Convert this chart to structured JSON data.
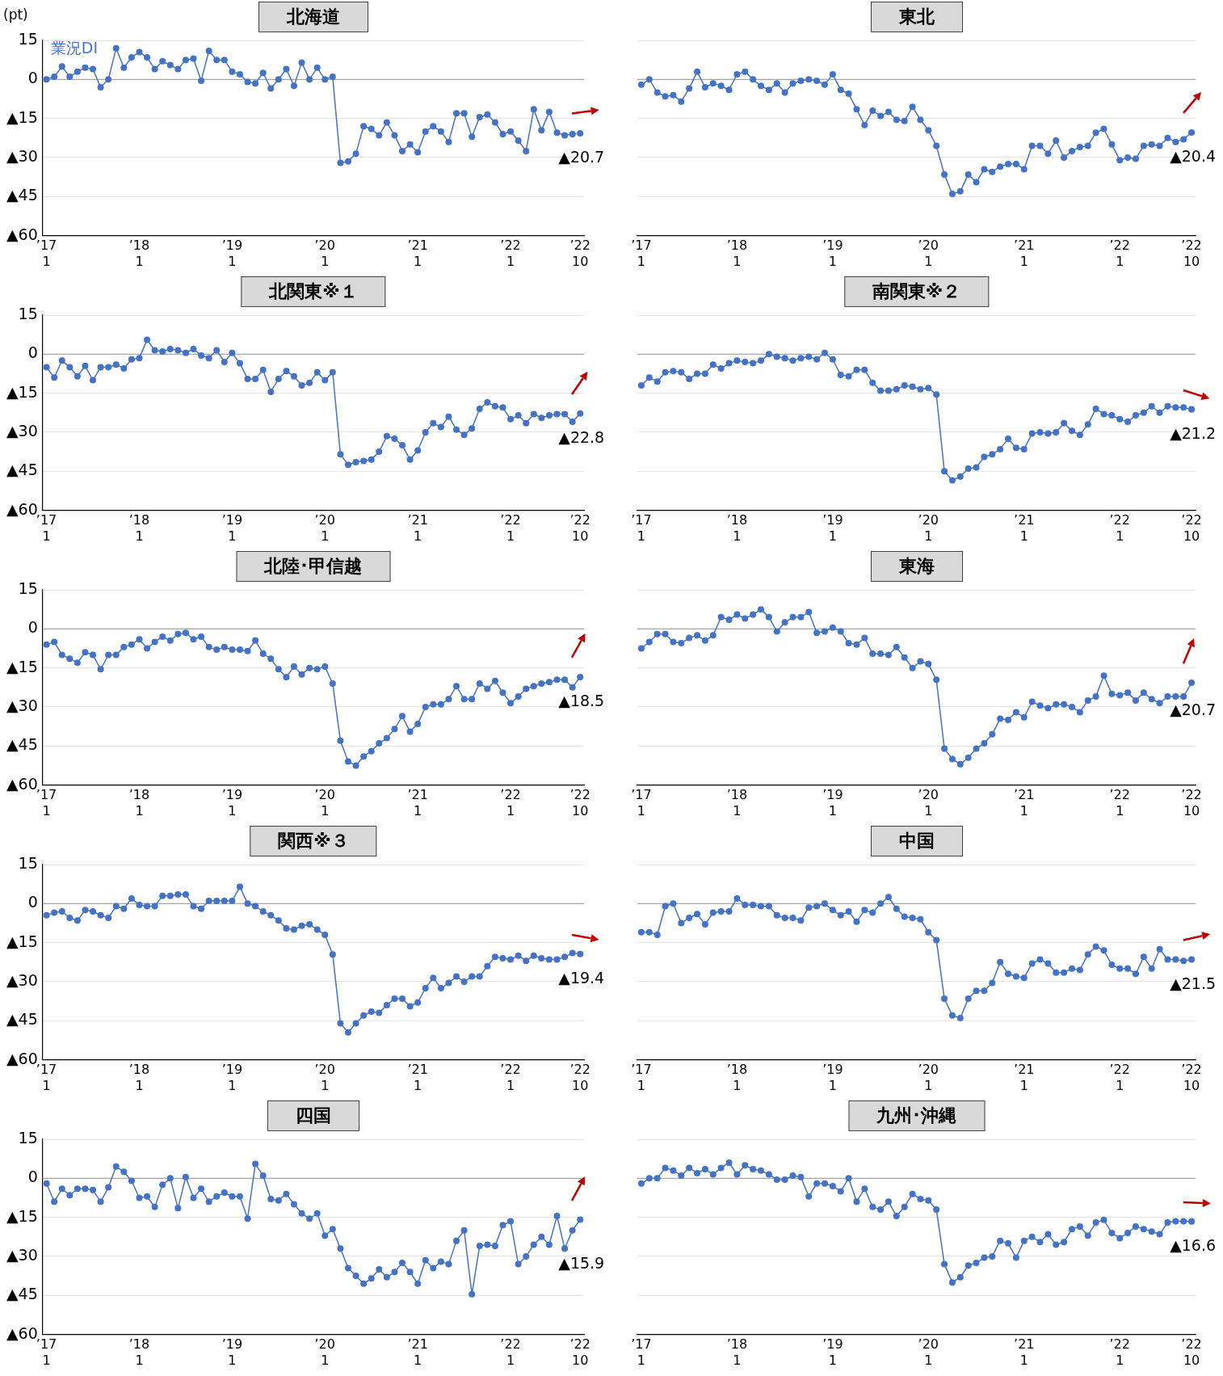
{
  "chart_data": [
    {
      "type": "line",
      "title": "北海道",
      "ylabel": "(pt)",
      "legend": "top left",
      "marker": "circle",
      "grid": "y",
      "categories": [
        "’17\n1",
        null,
        null,
        null,
        null,
        null,
        null,
        null,
        null,
        null,
        null,
        null,
        "’18\n1",
        null,
        null,
        null,
        null,
        null,
        null,
        null,
        null,
        null,
        null,
        null,
        "’19\n1",
        null,
        null,
        null,
        null,
        null,
        null,
        null,
        null,
        null,
        null,
        null,
        "’20\n1",
        null,
        null,
        null,
        null,
        null,
        null,
        null,
        null,
        null,
        null,
        null,
        "’21\n1",
        null,
        null,
        null,
        null,
        null,
        null,
        null,
        null,
        null,
        null,
        null,
        "’22\n1",
        null,
        null,
        null,
        null,
        null,
        null,
        null,
        null,
        "’22\n10"
      ],
      "series": [
        {
          "name": "業況DI",
          "color": "#4472c4",
          "values": [
            0,
            1,
            5,
            1,
            3,
            4.5,
            4,
            -3,
            0,
            12,
            4.5,
            8.5,
            10.5,
            8.5,
            4,
            7,
            5.5,
            4,
            7.5,
            8,
            -0.5,
            11,
            7.5,
            7.5,
            3,
            2,
            -1,
            -1.5,
            2.5,
            -3.5,
            0,
            4,
            -2.5,
            6.5,
            0,
            4.5,
            0,
            1,
            -32,
            -31.5,
            -28.5,
            -18,
            -19,
            -21.5,
            -16.5,
            -21.5,
            -27.5,
            -25,
            -28,
            -20,
            -18,
            -20,
            -24,
            -13,
            -13,
            -22,
            -14.5,
            -13.5,
            -16.5,
            -21,
            -20,
            -23.5,
            -27.5,
            -11.5,
            -19.5,
            -12.5,
            -20.5,
            -21.5,
            -21,
            -20.7
          ]
        }
      ],
      "ylim": [
        -60,
        15
      ],
      "yticks": [
        {
          "value": -60,
          "label": "▲60"
        },
        {
          "value": -45,
          "label": "▲45"
        },
        {
          "value": -30,
          "label": "▲30"
        },
        {
          "value": -15,
          "label": "▲15"
        },
        {
          "value": 0,
          "label": "0"
        },
        {
          "value": 15,
          "label": "15"
        }
      ],
      "ref_lines": [
        {
          "axis": "y",
          "value": 0,
          "color": "#a6a6a6"
        }
      ],
      "annotations": [
        {
          "text": "▲20.7",
          "x": "’22\n10",
          "y": -20.7
        }
      ]
    },
    {
      "type": "line",
      "title": "東北",
      "marker": "circle",
      "grid": "y",
      "tick_labels": "x",
      "categories": [
        "’17\n1",
        null,
        null,
        null,
        null,
        null,
        null,
        null,
        null,
        null,
        null,
        null,
        "’18\n1",
        null,
        null,
        null,
        null,
        null,
        null,
        null,
        null,
        null,
        null,
        null,
        "’19\n1",
        null,
        null,
        null,
        null,
        null,
        null,
        null,
        null,
        null,
        null,
        null,
        "’20\n1",
        null,
        null,
        null,
        null,
        null,
        null,
        null,
        null,
        null,
        null,
        null,
        "’21\n1",
        null,
        null,
        null,
        null,
        null,
        null,
        null,
        null,
        null,
        null,
        null,
        "’22\n1",
        null,
        null,
        null,
        null,
        null,
        null,
        null,
        null,
        "’22\n10"
      ],
      "series": [
        {
          "color": "#4472c4",
          "values": [
            -2,
            0,
            -5,
            -6.5,
            -6,
            -8.5,
            -3.5,
            3,
            -3,
            -1.5,
            -2.5,
            -4,
            2,
            3,
            0,
            -2.5,
            -4,
            -1.5,
            -5,
            -1.5,
            -0.5,
            0,
            -0.5,
            -2,
            2,
            -4,
            -5.5,
            -11.5,
            -17.5,
            -12,
            -14,
            -12.5,
            -15.5,
            -16,
            -10.5,
            -15.5,
            -19.5,
            -25.5,
            -36.5,
            -44,
            -43,
            -36.5,
            -39.5,
            -34.5,
            -35.5,
            -33.5,
            -32.5,
            -32.5,
            -34.5,
            -25.5,
            -25.5,
            -28.5,
            -23.5,
            -30,
            -27.5,
            -26,
            -25.5,
            -20.5,
            -19,
            -25,
            -31,
            -30,
            -30.5,
            -25.5,
            -25,
            -25.5,
            -22.5,
            -24,
            -23,
            -20.4
          ]
        }
      ],
      "ylim": [
        -60,
        15
      ],
      "yticks": [
        {
          "value": -60,
          "label": "▲60"
        },
        {
          "value": -45,
          "label": "▲45"
        },
        {
          "value": -30,
          "label": "▲30"
        },
        {
          "value": -15,
          "label": "▲15"
        },
        {
          "value": 0,
          "label": "0"
        },
        {
          "value": 15,
          "label": "15"
        }
      ],
      "ref_lines": [
        {
          "axis": "y",
          "value": 0,
          "color": "#a6a6a6"
        }
      ],
      "annotations": [
        {
          "text": "▲20.4",
          "x": "’22\n10",
          "y": -20.4
        }
      ]
    },
    {
      "type": "line",
      "title": "北関東※１",
      "marker": "circle",
      "grid": "y",
      "categories": [
        "’17\n1",
        null,
        null,
        null,
        null,
        null,
        null,
        null,
        null,
        null,
        null,
        null,
        "’18\n1",
        null,
        null,
        null,
        null,
        null,
        null,
        null,
        null,
        null,
        null,
        null,
        "’19\n1",
        null,
        null,
        null,
        null,
        null,
        null,
        null,
        null,
        null,
        null,
        null,
        "’20\n1",
        null,
        null,
        null,
        null,
        null,
        null,
        null,
        null,
        null,
        null,
        null,
        "’21\n1",
        null,
        null,
        null,
        null,
        null,
        null,
        null,
        null,
        null,
        null,
        null,
        "’22\n1",
        null,
        null,
        null,
        null,
        null,
        null,
        null,
        null,
        "’22\n10"
      ],
      "series": [
        {
          "color": "#4472c4",
          "values": [
            -5,
            -9,
            -2.5,
            -5,
            -8.5,
            -4.5,
            -10,
            -5,
            -5,
            -4,
            -5.5,
            -2,
            -1.5,
            5.5,
            1.5,
            1,
            2,
            1.5,
            0.5,
            2,
            -0.5,
            -1.5,
            1.5,
            -3,
            0.5,
            -3.5,
            -9.5,
            -9.5,
            -6,
            -14.5,
            -9.5,
            -6.5,
            -8.5,
            -12,
            -11,
            -7,
            -10,
            -7,
            -38.5,
            -42.5,
            -41.5,
            -41,
            -40.5,
            -37.5,
            -31.5,
            -32.5,
            -35,
            -40.5,
            -37,
            -30,
            -26.5,
            -28,
            -24,
            -29,
            -31,
            -28.5,
            -21,
            -18.5,
            -20,
            -20.5,
            -25,
            -23.5,
            -26.5,
            -23,
            -24.5,
            -23.5,
            -23,
            -23,
            -26,
            -22.8
          ]
        }
      ],
      "ylim": [
        -60,
        15
      ],
      "yticks": [
        {
          "value": -60,
          "label": "▲60"
        },
        {
          "value": -45,
          "label": "▲45"
        },
        {
          "value": -30,
          "label": "▲30"
        },
        {
          "value": -15,
          "label": "▲15"
        },
        {
          "value": 0,
          "label": "0"
        },
        {
          "value": 15,
          "label": "15"
        }
      ],
      "ref_lines": [
        {
          "axis": "y",
          "value": 0,
          "color": "#a6a6a6"
        }
      ],
      "annotations": [
        {
          "text": "▲22.8",
          "x": "’22\n10",
          "y": -22.8
        }
      ]
    },
    {
      "type": "line",
      "title": "南関東※２",
      "marker": "circle",
      "grid": "y",
      "tick_labels": "x",
      "categories": [
        "’17\n1",
        null,
        null,
        null,
        null,
        null,
        null,
        null,
        null,
        null,
        null,
        null,
        "’18\n1",
        null,
        null,
        null,
        null,
        null,
        null,
        null,
        null,
        null,
        null,
        null,
        "’19\n1",
        null,
        null,
        null,
        null,
        null,
        null,
        null,
        null,
        null,
        null,
        null,
        "’20\n1",
        null,
        null,
        null,
        null,
        null,
        null,
        null,
        null,
        null,
        null,
        null,
        "’21\n1",
        null,
        null,
        null,
        null,
        null,
        null,
        null,
        null,
        null,
        null,
        null,
        "’22\n1",
        null,
        null,
        null,
        null,
        null,
        null,
        null,
        null,
        "’22\n10"
      ],
      "series": [
        {
          "color": "#4472c4",
          "values": [
            -12,
            -9,
            -10.5,
            -7,
            -6.5,
            -7,
            -9.5,
            -7.5,
            -7.5,
            -4,
            -5.5,
            -3.5,
            -2.5,
            -3,
            -3.5,
            -2.5,
            0,
            -1,
            -1.5,
            -2.5,
            -1.5,
            -1,
            -2,
            0.5,
            -2,
            -8,
            -8.5,
            -6,
            -6,
            -11,
            -14,
            -14,
            -13.5,
            -12,
            -12.5,
            -13.5,
            -13,
            -15.5,
            -45,
            -48.5,
            -47,
            -44,
            -43.5,
            -39.5,
            -38.5,
            -36.5,
            -32.5,
            -36,
            -36.5,
            -30.5,
            -30,
            -30.5,
            -30,
            -26.5,
            -29.5,
            -31,
            -27,
            -21,
            -23,
            -23.5,
            -25,
            -26,
            -23.5,
            -22.5,
            -20,
            -22.5,
            -20,
            -20.5,
            -20.5,
            -21.2
          ]
        }
      ],
      "ylim": [
        -60,
        15
      ],
      "yticks": [
        {
          "value": -60,
          "label": "▲60"
        },
        {
          "value": -45,
          "label": "▲45"
        },
        {
          "value": -30,
          "label": "▲30"
        },
        {
          "value": -15,
          "label": "▲15"
        },
        {
          "value": 0,
          "label": "0"
        },
        {
          "value": 15,
          "label": "15"
        }
      ],
      "ref_lines": [
        {
          "axis": "y",
          "value": 0,
          "color": "#a6a6a6"
        }
      ],
      "annotations": [
        {
          "text": "▲21.2",
          "x": "’22\n10",
          "y": -21.2
        }
      ]
    },
    {
      "type": "line",
      "title": "北陸･甲信越",
      "marker": "circle",
      "grid": "y",
      "categories": [
        "’17\n1",
        null,
        null,
        null,
        null,
        null,
        null,
        null,
        null,
        null,
        null,
        null,
        "’18\n1",
        null,
        null,
        null,
        null,
        null,
        null,
        null,
        null,
        null,
        null,
        null,
        "’19\n1",
        null,
        null,
        null,
        null,
        null,
        null,
        null,
        null,
        null,
        null,
        null,
        "’20\n1",
        null,
        null,
        null,
        null,
        null,
        null,
        null,
        null,
        null,
        null,
        null,
        "’21\n1",
        null,
        null,
        null,
        null,
        null,
        null,
        null,
        null,
        null,
        null,
        null,
        "’22\n1",
        null,
        null,
        null,
        null,
        null,
        null,
        null,
        null,
        "’22\n10"
      ],
      "series": [
        {
          "color": "#4472c4",
          "values": [
            -6,
            -5,
            -10,
            -11.5,
            -13,
            -9,
            -10,
            -15.5,
            -10,
            -10,
            -7,
            -6,
            -4,
            -7.5,
            -5,
            -3,
            -4.5,
            -2,
            -1.5,
            -4,
            -3,
            -7,
            -8,
            -7,
            -8,
            -8,
            -8.5,
            -4.5,
            -9.5,
            -11.5,
            -15.5,
            -18.5,
            -14.5,
            -17.5,
            -15,
            -15.5,
            -14.5,
            -21,
            -43,
            -51,
            -52.5,
            -49,
            -47,
            -44,
            -42,
            -38.5,
            -33.5,
            -39.5,
            -36.5,
            -30,
            -29,
            -29,
            -27,
            -22,
            -27,
            -27,
            -21,
            -23,
            -20,
            -24.5,
            -28.5,
            -26,
            -23,
            -22,
            -21,
            -20.5,
            -19.5,
            -19.5,
            -22.5,
            -18.5
          ]
        }
      ],
      "ylim": [
        -60,
        15
      ],
      "yticks": [
        {
          "value": -60,
          "label": "▲60"
        },
        {
          "value": -45,
          "label": "▲45"
        },
        {
          "value": -30,
          "label": "▲30"
        },
        {
          "value": -15,
          "label": "▲15"
        },
        {
          "value": 0,
          "label": "0"
        },
        {
          "value": 15,
          "label": "15"
        }
      ],
      "ref_lines": [
        {
          "axis": "y",
          "value": 0,
          "color": "#a6a6a6"
        }
      ],
      "annotations": [
        {
          "text": "▲18.5",
          "x": "’22\n10",
          "y": -18.5
        }
      ]
    },
    {
      "type": "line",
      "title": "東海",
      "marker": "circle",
      "grid": "y",
      "tick_labels": "x",
      "categories": [
        "’17\n1",
        null,
        null,
        null,
        null,
        null,
        null,
        null,
        null,
        null,
        null,
        null,
        "’18\n1",
        null,
        null,
        null,
        null,
        null,
        null,
        null,
        null,
        null,
        null,
        null,
        "’19\n1",
        null,
        null,
        null,
        null,
        null,
        null,
        null,
        null,
        null,
        null,
        null,
        "’20\n1",
        null,
        null,
        null,
        null,
        null,
        null,
        null,
        null,
        null,
        null,
        null,
        "’21\n1",
        null,
        null,
        null,
        null,
        null,
        null,
        null,
        null,
        null,
        null,
        null,
        "’22\n1",
        null,
        null,
        null,
        null,
        null,
        null,
        null,
        null,
        "’22\n10"
      ],
      "series": [
        {
          "color": "#4472c4",
          "values": [
            -7.5,
            -5,
            -2,
            -2,
            -5,
            -5.5,
            -3.5,
            -2.5,
            -4.5,
            -2.5,
            4.5,
            3.5,
            5.5,
            4,
            5.5,
            7.5,
            4.5,
            -1,
            2.5,
            4.5,
            4.5,
            6.5,
            -1.5,
            -1,
            0.5,
            -1,
            -5.5,
            -6,
            -3.5,
            -9.5,
            -9.5,
            -10,
            -7,
            -11,
            -15,
            -12.5,
            -13.5,
            -19.5,
            -46,
            -50,
            -52,
            -49.5,
            -46,
            -44,
            -40.5,
            -34.5,
            -35,
            -32,
            -34,
            -28,
            -29.5,
            -30.5,
            -29,
            -29,
            -30,
            -32,
            -27.5,
            -26,
            -18,
            -25,
            -25.5,
            -24.5,
            -27.5,
            -24.5,
            -27,
            -28.5,
            -26,
            -26,
            -26,
            -20.7
          ]
        }
      ],
      "ylim": [
        -60,
        15
      ],
      "yticks": [
        {
          "value": -60,
          "label": "▲60"
        },
        {
          "value": -45,
          "label": "▲45"
        },
        {
          "value": -30,
          "label": "▲30"
        },
        {
          "value": -15,
          "label": "▲15"
        },
        {
          "value": 0,
          "label": "0"
        },
        {
          "value": 15,
          "label": "15"
        }
      ],
      "ref_lines": [
        {
          "axis": "y",
          "value": 0,
          "color": "#a6a6a6"
        }
      ],
      "annotations": [
        {
          "text": "▲20.7",
          "x": "’22\n10",
          "y": -20.7
        }
      ]
    },
    {
      "type": "line",
      "title": "関西※３",
      "marker": "circle",
      "grid": "y",
      "categories": [
        "’17\n1",
        null,
        null,
        null,
        null,
        null,
        null,
        null,
        null,
        null,
        null,
        null,
        "’18\n1",
        null,
        null,
        null,
        null,
        null,
        null,
        null,
        null,
        null,
        null,
        null,
        "’19\n1",
        null,
        null,
        null,
        null,
        null,
        null,
        null,
        null,
        null,
        null,
        null,
        "’20\n1",
        null,
        null,
        null,
        null,
        null,
        null,
        null,
        null,
        null,
        null,
        null,
        "’21\n1",
        null,
        null,
        null,
        null,
        null,
        null,
        null,
        null,
        null,
        null,
        null,
        "’22\n1",
        null,
        null,
        null,
        null,
        null,
        null,
        null,
        null,
        "’22\n10"
      ],
      "series": [
        {
          "color": "#4472c4",
          "values": [
            -4.5,
            -3.5,
            -3,
            -5.5,
            -6.5,
            -2.5,
            -3,
            -4.5,
            -5.5,
            -1,
            -2,
            2,
            -0.5,
            -1,
            -1,
            3,
            3,
            3.5,
            3.5,
            -1,
            -2,
            1,
            1,
            1,
            1,
            6.5,
            0,
            -1,
            -3,
            -4.5,
            -6.5,
            -9.5,
            -10,
            -8.5,
            -8,
            -10,
            -12,
            -19.5,
            -46,
            -49.5,
            -46,
            -43,
            -41.5,
            -42,
            -39,
            -36.5,
            -36.5,
            -39.5,
            -38,
            -32.5,
            -28.5,
            -32.5,
            -30.5,
            -28,
            -30,
            -28,
            -28,
            -24,
            -20.5,
            -21,
            -21.5,
            -20,
            -22,
            -20,
            -21,
            -21.5,
            -21.5,
            -20.5,
            -19,
            -19.4
          ]
        }
      ],
      "ylim": [
        -60,
        15
      ],
      "yticks": [
        {
          "value": -60,
          "label": "▲60"
        },
        {
          "value": -45,
          "label": "▲45"
        },
        {
          "value": -30,
          "label": "▲30"
        },
        {
          "value": -15,
          "label": "▲15"
        },
        {
          "value": 0,
          "label": "0"
        },
        {
          "value": 15,
          "label": "15"
        }
      ],
      "ref_lines": [
        {
          "axis": "y",
          "value": 0,
          "color": "#a6a6a6"
        }
      ],
      "annotations": [
        {
          "text": "▲19.4",
          "x": "’22\n10",
          "y": -19.4
        }
      ]
    },
    {
      "type": "line",
      "title": "中国",
      "marker": "circle",
      "grid": "y",
      "tick_labels": "x",
      "categories": [
        "’17\n1",
        null,
        null,
        null,
        null,
        null,
        null,
        null,
        null,
        null,
        null,
        null,
        "’18\n1",
        null,
        null,
        null,
        null,
        null,
        null,
        null,
        null,
        null,
        null,
        null,
        "’19\n1",
        null,
        null,
        null,
        null,
        null,
        null,
        null,
        null,
        null,
        null,
        null,
        "’20\n1",
        null,
        null,
        null,
        null,
        null,
        null,
        null,
        null,
        null,
        null,
        null,
        "’21\n1",
        null,
        null,
        null,
        null,
        null,
        null,
        null,
        null,
        null,
        null,
        null,
        "’22\n1",
        null,
        null,
        null,
        null,
        null,
        null,
        null,
        null,
        "’22\n10"
      ],
      "series": [
        {
          "color": "#4472c4",
          "values": [
            -11,
            -11,
            -12,
            -1,
            0,
            -7.5,
            -5.5,
            -4,
            -8,
            -3.5,
            -3,
            -3,
            2,
            -0.5,
            -0.5,
            -1,
            -1,
            -4.5,
            -5.5,
            -5.5,
            -6.5,
            -1.5,
            -1,
            0,
            -2.5,
            -4.5,
            -3,
            -7,
            -2.5,
            -3.5,
            0,
            2.5,
            -2,
            -5,
            -5.5,
            -6,
            -11,
            -14,
            -36.5,
            -43,
            -44,
            -36.5,
            -33.5,
            -33.5,
            -30.5,
            -22.5,
            -27,
            -28,
            -28.5,
            -23,
            -21.5,
            -23,
            -26.5,
            -26.5,
            -25,
            -25.5,
            -19.5,
            -16.5,
            -18,
            -23.5,
            -25,
            -25,
            -27,
            -20.5,
            -25,
            -17.5,
            -21.5,
            -21.5,
            -22,
            -21.5
          ]
        }
      ],
      "ylim": [
        -60,
        15
      ],
      "yticks": [
        {
          "value": -60,
          "label": "▲60"
        },
        {
          "value": -45,
          "label": "▲45"
        },
        {
          "value": -30,
          "label": "▲30"
        },
        {
          "value": -15,
          "label": "▲15"
        },
        {
          "value": 0,
          "label": "0"
        },
        {
          "value": 15,
          "label": "15"
        }
      ],
      "ref_lines": [
        {
          "axis": "y",
          "value": 0,
          "color": "#a6a6a6"
        }
      ],
      "annotations": [
        {
          "text": "▲21.5",
          "x": "’22\n10",
          "y": -21.5
        }
      ]
    },
    {
      "type": "line",
      "title": "四国",
      "marker": "circle",
      "grid": "y",
      "categories": [
        "’17\n1",
        null,
        null,
        null,
        null,
        null,
        null,
        null,
        null,
        null,
        null,
        null,
        "’18\n1",
        null,
        null,
        null,
        null,
        null,
        null,
        null,
        null,
        null,
        null,
        null,
        "’19\n1",
        null,
        null,
        null,
        null,
        null,
        null,
        null,
        null,
        null,
        null,
        null,
        "’20\n1",
        null,
        null,
        null,
        null,
        null,
        null,
        null,
        null,
        null,
        null,
        null,
        "’21\n1",
        null,
        null,
        null,
        null,
        null,
        null,
        null,
        null,
        null,
        null,
        null,
        "’22\n1",
        null,
        null,
        null,
        null,
        null,
        null,
        null,
        null,
        "’22\n10"
      ],
      "series": [
        {
          "color": "#4472c4",
          "values": [
            -2,
            -9,
            -4,
            -6.5,
            -4,
            -4,
            -4.5,
            -9,
            -3.5,
            4.5,
            2.5,
            -1,
            -7.5,
            -7,
            -11,
            -2.5,
            0,
            -11.5,
            0.5,
            -7.5,
            -4,
            -9,
            -7,
            -5.5,
            -7,
            -7,
            -15.5,
            5.5,
            1,
            -8,
            -8.5,
            -6,
            -10,
            -13.5,
            -15.5,
            -13.5,
            -22,
            -19.5,
            -27,
            -34.5,
            -37.5,
            -40.5,
            -38.5,
            -35,
            -38,
            -36,
            -32.5,
            -36,
            -40.5,
            -31.5,
            -34.5,
            -32,
            -33,
            -24,
            -20,
            -44.5,
            -26,
            -25.5,
            -26,
            -18,
            -16.5,
            -33,
            -30,
            -25.5,
            -22.5,
            -25.5,
            -14.5,
            -27,
            -20,
            -15.9
          ]
        }
      ],
      "ylim": [
        -60,
        15
      ],
      "yticks": [
        {
          "value": -60,
          "label": "▲60"
        },
        {
          "value": -45,
          "label": "▲45"
        },
        {
          "value": -30,
          "label": "▲30"
        },
        {
          "value": -15,
          "label": "▲15"
        },
        {
          "value": 0,
          "label": "0"
        },
        {
          "value": 15,
          "label": "15"
        }
      ],
      "ref_lines": [
        {
          "axis": "y",
          "value": 0,
          "color": "#a6a6a6"
        }
      ],
      "annotations": [
        {
          "text": "▲15.9",
          "x": "’22\n10",
          "y": -15.9
        }
      ]
    },
    {
      "type": "line",
      "title": "九州･沖縄",
      "marker": "circle",
      "grid": "y",
      "tick_labels": "x",
      "categories": [
        "’17\n1",
        null,
        null,
        null,
        null,
        null,
        null,
        null,
        null,
        null,
        null,
        null,
        "’18\n1",
        null,
        null,
        null,
        null,
        null,
        null,
        null,
        null,
        null,
        null,
        null,
        "’19\n1",
        null,
        null,
        null,
        null,
        null,
        null,
        null,
        null,
        null,
        null,
        null,
        "’20\n1",
        null,
        null,
        null,
        null,
        null,
        null,
        null,
        null,
        null,
        null,
        null,
        "’21\n1",
        null,
        null,
        null,
        null,
        null,
        null,
        null,
        null,
        null,
        null,
        null,
        "’22\n1",
        null,
        null,
        null,
        null,
        null,
        null,
        null,
        null,
        "’22\n10"
      ],
      "series": [
        {
          "color": "#4472c4",
          "values": [
            -2,
            0,
            0,
            4,
            3,
            1,
            4,
            2,
            3.5,
            1.5,
            4,
            6,
            1.5,
            5,
            3.5,
            3,
            1.5,
            -0.5,
            -0.5,
            1,
            0.5,
            -7,
            -2,
            -2,
            -3,
            -5,
            0,
            -9,
            -4,
            -11,
            -12,
            -9,
            -14.5,
            -11,
            -6,
            -8,
            -8.5,
            -12,
            -33,
            -40,
            -38,
            -33.5,
            -32.5,
            -30.5,
            -30,
            -24,
            -25,
            -30.5,
            -24,
            -22.5,
            -24.5,
            -21.5,
            -25.5,
            -24.5,
            -19.5,
            -18.5,
            -22,
            -17,
            -16,
            -21,
            -23,
            -21,
            -18.5,
            -19.5,
            -20.5,
            -21.5,
            -17,
            -16.5,
            -16.5,
            -16.6
          ]
        }
      ],
      "ylim": [
        -60,
        15
      ],
      "yticks": [
        {
          "value": -60,
          "label": "▲60"
        },
        {
          "value": -45,
          "label": "▲45"
        },
        {
          "value": -30,
          "label": "▲30"
        },
        {
          "value": -15,
          "label": "▲15"
        },
        {
          "value": 0,
          "label": "0"
        },
        {
          "value": 15,
          "label": "15"
        }
      ],
      "ref_lines": [
        {
          "axis": "y",
          "value": 0,
          "color": "#a6a6a6"
        }
      ],
      "annotations": [
        {
          "text": "▲16.6",
          "x": "’22\n10",
          "y": -16.6
        }
      ]
    }
  ]
}
